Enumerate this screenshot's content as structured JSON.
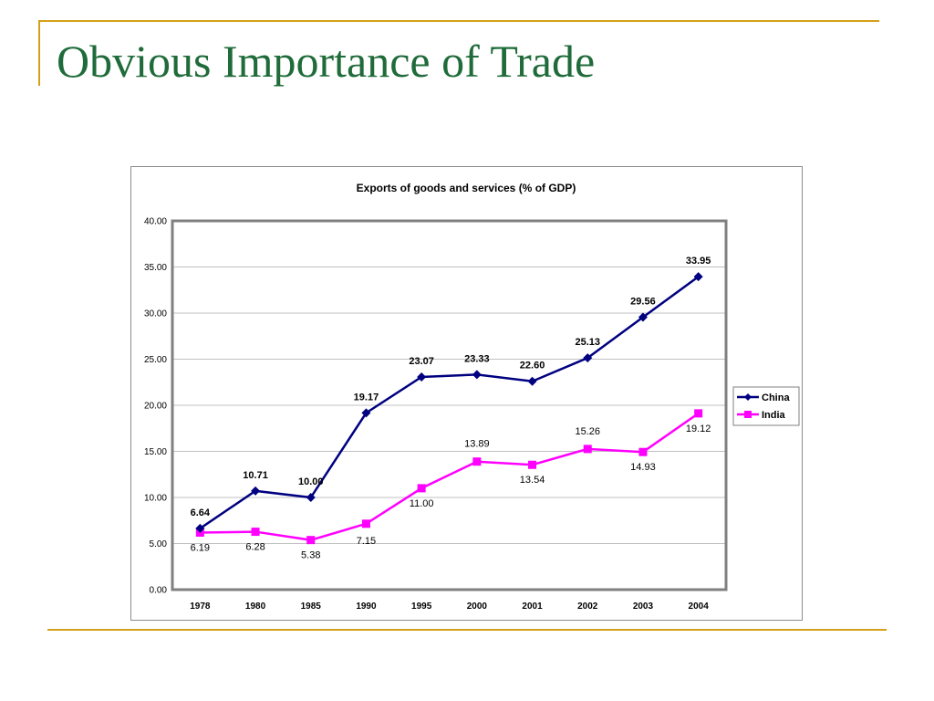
{
  "slide": {
    "title": "Obvious Importance of Trade"
  },
  "colors": {
    "title": "#1f6b3a",
    "accent_rule": "#d4a017",
    "china": "#000080",
    "india": "#ff00ff",
    "plot_border": "#808080",
    "gridline": "#c0c0c0"
  },
  "chart_data": {
    "type": "line",
    "title": "Exports of goods and services (% of GDP)",
    "xlabel": "",
    "ylabel": "",
    "categories": [
      "1978",
      "1980",
      "1985",
      "1990",
      "1995",
      "2000",
      "2001",
      "2002",
      "2003",
      "2004"
    ],
    "ylim": [
      0,
      40
    ],
    "yticks": [
      "0.00",
      "5.00",
      "10.00",
      "15.00",
      "20.00",
      "25.00",
      "30.00",
      "35.00",
      "40.00"
    ],
    "grid": true,
    "legend_position": "right",
    "series": [
      {
        "name": "China",
        "marker": "diamond",
        "values": [
          6.64,
          10.71,
          10.0,
          19.17,
          23.07,
          23.33,
          22.6,
          25.13,
          29.56,
          33.95
        ],
        "labels": [
          "6.64",
          "10.71",
          "10.00",
          "19.17",
          "23.07",
          "23.33",
          "22.60",
          "25.13",
          "29.56",
          "33.95"
        ]
      },
      {
        "name": "India",
        "marker": "square",
        "values": [
          6.19,
          6.28,
          5.38,
          7.15,
          11.0,
          13.89,
          13.54,
          15.26,
          14.93,
          19.12
        ],
        "labels": [
          "6.19",
          "6.28",
          "5.38",
          "7.15",
          "11.00",
          "13.89",
          "13.54",
          "15.26",
          "14.93",
          "19.12"
        ]
      }
    ]
  }
}
